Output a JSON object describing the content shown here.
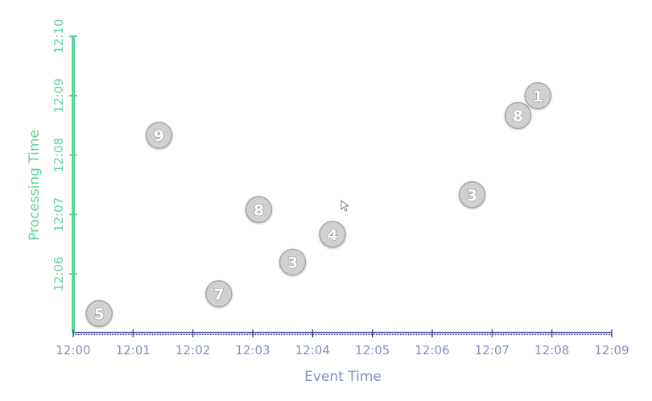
{
  "chart_data": {
    "type": "scatter",
    "xlabel": "Event Time",
    "ylabel": "Processing Time",
    "x_ticks": [
      "12:00",
      "12:01",
      "12:02",
      "12:03",
      "12:04",
      "12:05",
      "12:06",
      "12:07",
      "12:08",
      "12:09"
    ],
    "y_ticks": [
      "12:06",
      "12:07",
      "12:08",
      "12:09",
      "12:10"
    ],
    "xlim": [
      "12:00",
      "12:09"
    ],
    "ylim": [
      "12:05",
      "12:10"
    ],
    "points": [
      {
        "label": "5",
        "x": "12:00:26",
        "y": "12:05:20"
      },
      {
        "label": "9",
        "x": "12:01:26",
        "y": "12:08:20"
      },
      {
        "label": "7",
        "x": "12:02:26",
        "y": "12:05:40"
      },
      {
        "label": "8",
        "x": "12:03:06",
        "y": "12:07:05"
      },
      {
        "label": "3",
        "x": "12:03:40",
        "y": "12:06:12"
      },
      {
        "label": "4",
        "x": "12:04:20",
        "y": "12:06:40"
      },
      {
        "label": "3",
        "x": "12:06:40",
        "y": "12:07:20"
      },
      {
        "label": "8",
        "x": "12:07:26",
        "y": "12:08:40"
      },
      {
        "label": "1",
        "x": "12:07:46",
        "y": "12:09:00"
      }
    ],
    "grid": false,
    "colors": {
      "x_axis": "#2b2f8f",
      "y_axis": "#5fd39a",
      "x_text": "#7f8fc4",
      "y_text": "#5fd39a",
      "marker_fill": "#d0d0d0",
      "marker_stroke": "#a8a8a8",
      "marker_text": "#ffffff"
    }
  }
}
